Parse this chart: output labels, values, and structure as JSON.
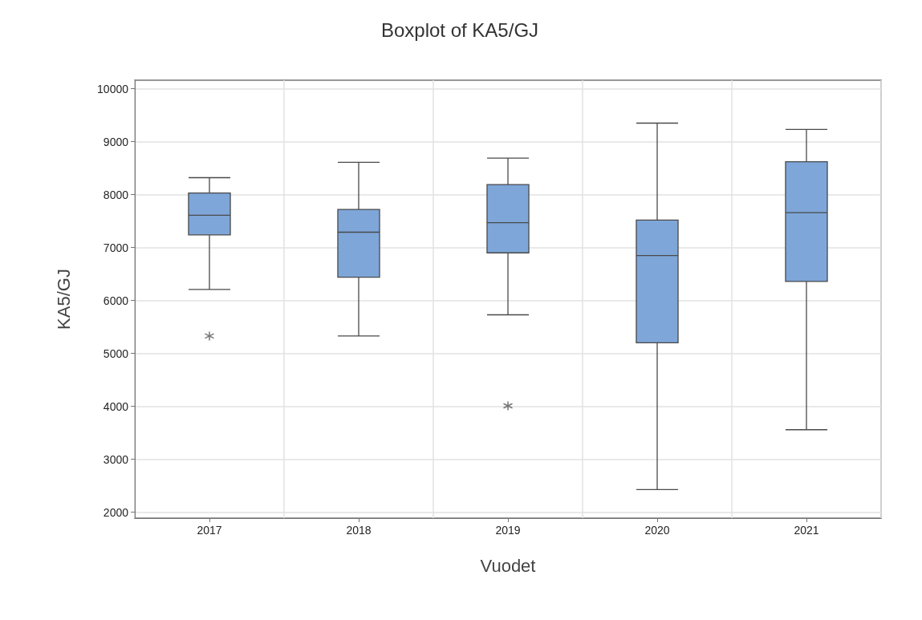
{
  "chart_data": {
    "type": "box",
    "title": "Boxplot of KA5/GJ",
    "xlabel": "Vuodet",
    "ylabel": "KA5/GJ",
    "categories": [
      "2017",
      "2018",
      "2019",
      "2020",
      "2021"
    ],
    "color": "#7ea6d9",
    "boxes": [
      {
        "low": 6210,
        "q1": 7240,
        "median": 7610,
        "q3": 8030,
        "high": 8320,
        "outliers": [
          5330
        ]
      },
      {
        "low": 5330,
        "q1": 6440,
        "median": 7290,
        "q3": 7720,
        "high": 8610
      },
      {
        "low": 5730,
        "q1": 6900,
        "median": 7470,
        "q3": 8190,
        "high": 8690,
        "outliers": [
          4010
        ]
      },
      {
        "low": 2430,
        "q1": 5200,
        "median": 6850,
        "q3": 7520,
        "high": 9350
      },
      {
        "low": 3560,
        "q1": 6360,
        "median": 7660,
        "q3": 8620,
        "high": 9230
      }
    ],
    "ylim": [
      1890,
      10160
    ],
    "yticks": [
      2000,
      3000,
      4000,
      5000,
      6000,
      7000,
      8000,
      9000,
      10000
    ],
    "grid": true,
    "marker": "star"
  }
}
